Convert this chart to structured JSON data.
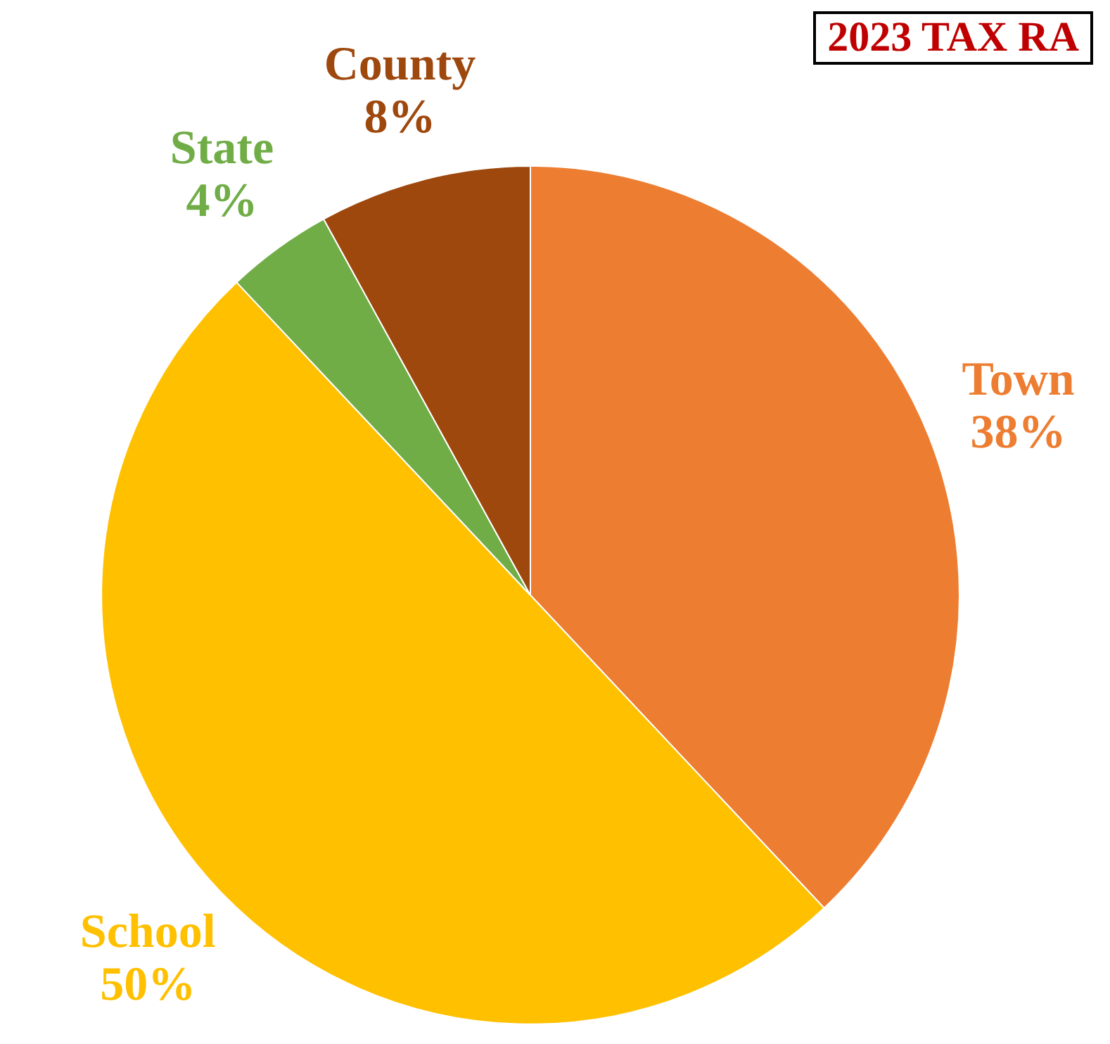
{
  "chart_data": {
    "type": "pie",
    "title": "2023 TAX RA",
    "categories": [
      "Town",
      "School",
      "State",
      "County"
    ],
    "values": [
      38,
      50,
      4,
      8
    ],
    "colors": [
      "#ed7d31",
      "#ffc000",
      "#70ad47",
      "#9e480e"
    ],
    "value_labels": [
      "38%",
      "50%",
      "4%",
      "8%"
    ]
  }
}
